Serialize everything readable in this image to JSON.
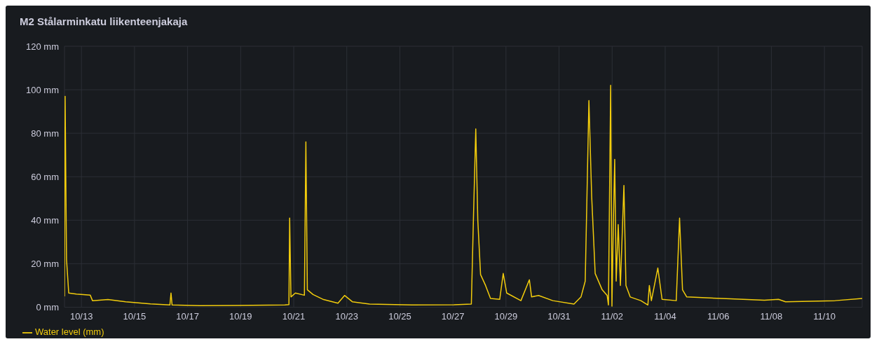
{
  "chart_data": {
    "type": "line",
    "title": "M2 Stålarminkatu liikenteenjakaja",
    "x": [
      "--10-12T08:40",
      "--10-12T09:15",
      "--10-12T10:30",
      "--10-12T12:30",
      "--10-12T19:30",
      "--10-13T08:00",
      "--10-13T10:00",
      "--10-14T00:00",
      "--10-14T16:00",
      "--10-15T14:30",
      "--10-16T08:00",
      "--10-16T09:00",
      "--10-16T10:00",
      "--10-17T11:00",
      "--10-18T19:00",
      "--10-20T16:00",
      "--10-20T19:40",
      "--10-20T20:20",
      "--10-20T21:30",
      "--10-21T01:30",
      "--10-21T09:40",
      "--10-21T11:00",
      "--10-21T12:20",
      "--10-21T17:30",
      "--10-22T03:00",
      "--10-22T16:00",
      "--10-22T22:00",
      "--10-23T05:00",
      "--10-23T20:40",
      "--10-25T10:40",
      "--10-27T01:00",
      "--10-27T16:40",
      "--10-27T18:40",
      "--10-27T20:40",
      "--10-27T22:30",
      "--10-28T01:00",
      "--10-28T05:30",
      "--10-28T10:00",
      "--10-28T18:20",
      "--10-28T21:30",
      "--10-29T00:40",
      "--10-29T13:30",
      "--10-29T21:10",
      "--10-29T23:10",
      "--10-30T05:30",
      "--10-30T18:20",
      "--10-31T13:30",
      "--10-31T19:50",
      "--10-31T23:40",
      "--11-01T03:00",
      "--11-01T05:30",
      "--11-01T08:40",
      "--11-01T15:00",
      "--11-01T19:30",
      "--11-01T20:40",
      "--11-01T22:00",
      "--11-01T22:40",
      "--11-01T23:50",
      "--11-02T01:10",
      "--11-02T02:20",
      "--11-02T03:40",
      "--11-02T05:30",
      "--11-02T07:30",
      "--11-02T10:40",
      "--11-02T12:30",
      "--11-02T16:20",
      "--11-03T02:00",
      "--11-03T08:20",
      "--11-03T09:40",
      "--11-03T11:30",
      "--11-03T17:20",
      "--11-03T21:10",
      "--11-04T10:00",
      "--11-04T13:00",
      "--11-04T15:40",
      "--11-04T19:30",
      "--11-06T03:20",
      "--11-07T17:40",
      "--11-08T06:30",
      "--11-08T12:50",
      "--11-10T09:40",
      "--11-11T10:10"
    ],
    "series": [
      {
        "name": "Water level (mm)",
        "color": "#f2cc0c",
        "values": [
          5,
          97,
          22,
          6.5,
          6,
          5.5,
          3,
          3.5,
          2.5,
          1.5,
          1,
          6.5,
          1,
          0.7,
          0.8,
          1,
          1.2,
          41,
          4.7,
          6.5,
          5.5,
          76,
          8,
          5.8,
          3.5,
          1.8,
          5.4,
          2.5,
          1.4,
          1,
          1.1,
          1.4,
          43,
          82,
          40,
          15,
          10,
          4,
          3.6,
          15.5,
          6.5,
          3,
          12.6,
          4.7,
          5.4,
          3,
          1.4,
          4.7,
          12,
          95,
          51,
          15.5,
          8,
          5.4,
          1,
          69,
          102,
          0.5,
          40,
          68,
          12,
          38,
          10,
          56,
          10,
          4.7,
          3,
          1,
          10,
          3,
          18,
          3.6,
          3,
          41,
          8,
          4.7,
          4,
          3.2,
          3.6,
          2.5,
          3,
          4
        ]
      }
    ],
    "xlim": [
      "--10-12T08:40",
      "--11-11T10:10"
    ],
    "xticks": [
      {
        "value": "--10-13",
        "label": "10/13"
      },
      {
        "value": "--10-15",
        "label": "10/15"
      },
      {
        "value": "--10-17",
        "label": "10/17"
      },
      {
        "value": "--10-19",
        "label": "10/19"
      },
      {
        "value": "--10-21",
        "label": "10/21"
      },
      {
        "value": "--10-23",
        "label": "10/23"
      },
      {
        "value": "--10-25",
        "label": "10/25"
      },
      {
        "value": "--10-27",
        "label": "10/27"
      },
      {
        "value": "--10-29",
        "label": "10/29"
      },
      {
        "value": "--10-31",
        "label": "10/31"
      },
      {
        "value": "--11-02",
        "label": "11/02"
      },
      {
        "value": "--11-04",
        "label": "11/04"
      },
      {
        "value": "--11-06",
        "label": "11/06"
      },
      {
        "value": "--11-08",
        "label": "11/08"
      },
      {
        "value": "--11-10",
        "label": "11/10"
      }
    ],
    "ylim": [
      0,
      120
    ],
    "yticks": [
      {
        "value": 0,
        "label": "0 mm"
      },
      {
        "value": 20,
        "label": "20 mm"
      },
      {
        "value": 40,
        "label": "40 mm"
      },
      {
        "value": 60,
        "label": "60 mm"
      },
      {
        "value": 80,
        "label": "80 mm"
      },
      {
        "value": 100,
        "label": "100 mm"
      },
      {
        "value": 120,
        "label": "120 mm"
      }
    ],
    "grid": true,
    "legend": "bottom left"
  }
}
